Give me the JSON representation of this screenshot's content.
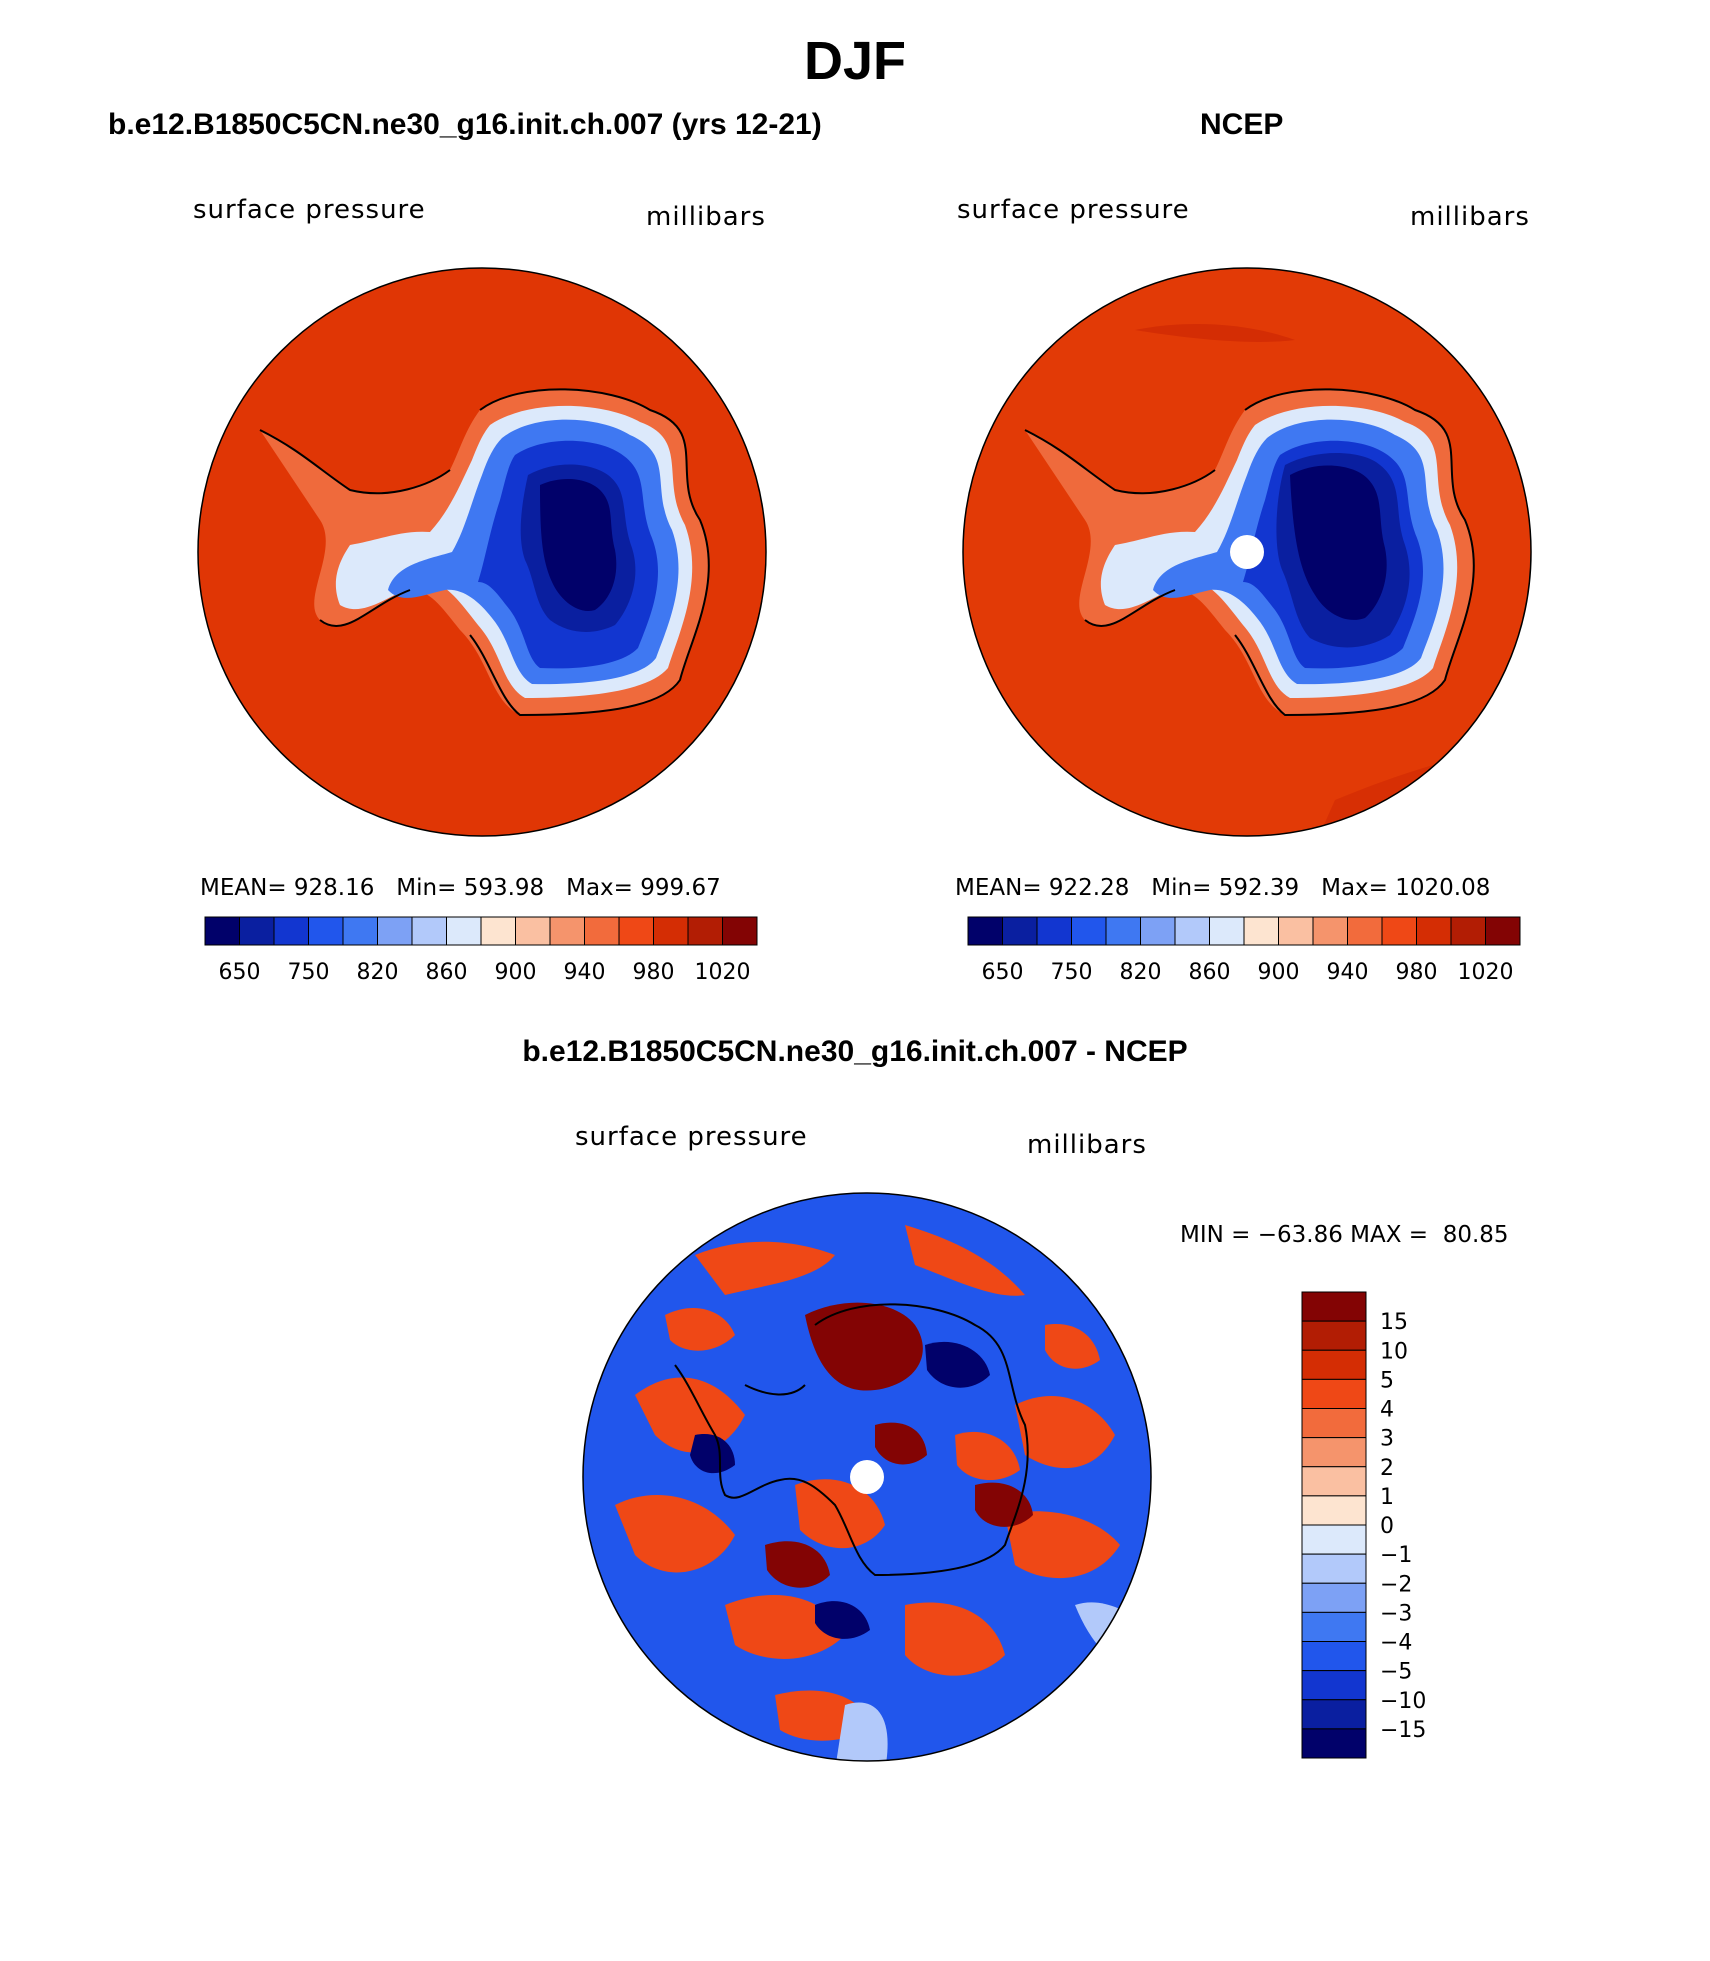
{
  "title": "DJF",
  "panel_model": {
    "title": "b.e12.B1850C5CN.ne30_g16.init.ch.007 (yrs 12-21)",
    "left_label": "surface pressure",
    "right_label": "millibars",
    "stats": "MEAN= 928.16   Min= 593.98   Max= 999.67"
  },
  "panel_obs": {
    "title": "NCEP",
    "left_label": "surface pressure",
    "right_label": "millibars",
    "stats": "MEAN= 922.28   Min= 592.39   Max= 1020.08"
  },
  "panel_diff": {
    "title": "b.e12.B1850C5CN.ne30_g16.init.ch.007 - NCEP",
    "left_label": "surface pressure",
    "right_label": "millibars",
    "minmax": "MIN = −63.86 MAX =  80.85"
  },
  "colors": {
    "abs_palette": [
      "#01016a",
      "#0a1fa0",
      "#1236d0",
      "#2156ec",
      "#3f78f2",
      "#7da1f5",
      "#b2c9fa",
      "#dce9fb",
      "#fde4d0",
      "#fac0a2",
      "#f5946c",
      "#f26b3c",
      "#ef4816",
      "#d42d04",
      "#b21d04",
      "#830404"
    ],
    "diff_palette": [
      "#01016a",
      "#0a1fa0",
      "#1236d0",
      "#2156ec",
      "#3f78f2",
      "#7da1f5",
      "#b2c9fa",
      "#dce9fb",
      "#fde4d0",
      "#fac0a2",
      "#f5946c",
      "#f26b3c",
      "#ef4816",
      "#d42d04",
      "#b21d04",
      "#830404"
    ],
    "ocean_model": "#e03605",
    "ocean_obs": "#e23a06"
  },
  "abs_colorbar_labels": [
    "650",
    "750",
    "820",
    "860",
    "900",
    "940",
    "980",
    "1020"
  ],
  "diff_colorbar_labels": [
    "15",
    "10",
    "5",
    "4",
    "3",
    "2",
    "1",
    "0",
    "−1",
    "−2",
    "−3",
    "−4",
    "−5",
    "−10",
    "−15"
  ]
}
